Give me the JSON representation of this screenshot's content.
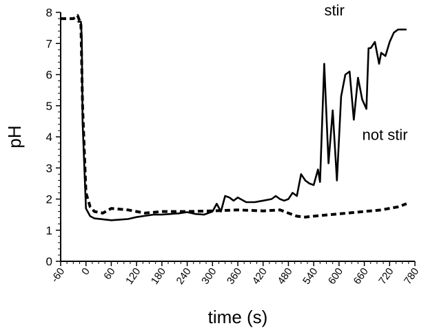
{
  "chart_data": {
    "type": "line",
    "title": "",
    "xlabel": "time (s)",
    "ylabel": "pH",
    "xlim": [
      -60,
      780
    ],
    "ylim": [
      0,
      8
    ],
    "xticks": [
      -60,
      0,
      60,
      120,
      180,
      240,
      300,
      360,
      420,
      480,
      540,
      600,
      660,
      720,
      780
    ],
    "yticks": [
      0,
      1,
      2,
      3,
      4,
      5,
      6,
      7,
      8
    ],
    "grid": false,
    "legend": "none",
    "annotations": [
      {
        "text": "stir",
        "x": 565,
        "y": 7.9
      },
      {
        "text": "not stir",
        "x": 655,
        "y": 3.9
      }
    ],
    "series": [
      {
        "name": "stir",
        "style": "solid",
        "color": "#000000",
        "x": [
          -20,
          -12,
          -10,
          -8,
          0,
          10,
          20,
          40,
          60,
          80,
          100,
          120,
          140,
          160,
          180,
          200,
          220,
          240,
          260,
          280,
          290,
          300,
          310,
          320,
          330,
          340,
          350,
          360,
          380,
          400,
          420,
          440,
          450,
          460,
          470,
          480,
          490,
          500,
          510,
          520,
          530,
          540,
          550,
          555,
          565,
          575,
          585,
          595,
          605,
          615,
          625,
          635,
          645,
          655,
          665,
          670,
          675,
          685,
          695,
          700,
          710,
          720,
          730,
          740,
          750,
          760
        ],
        "y": [
          7.7,
          7.7,
          7.2,
          4.5,
          1.7,
          1.45,
          1.38,
          1.35,
          1.32,
          1.34,
          1.36,
          1.42,
          1.46,
          1.5,
          1.5,
          1.52,
          1.54,
          1.58,
          1.52,
          1.5,
          1.55,
          1.6,
          1.85,
          1.6,
          2.1,
          2.05,
          1.95,
          2.05,
          1.9,
          1.9,
          1.95,
          2.0,
          2.1,
          2.0,
          1.95,
          2.0,
          2.2,
          2.1,
          2.8,
          2.6,
          2.5,
          2.45,
          2.95,
          2.55,
          6.35,
          3.15,
          4.85,
          2.6,
          5.3,
          6.0,
          6.1,
          4.55,
          5.9,
          5.2,
          4.9,
          6.85,
          6.85,
          7.05,
          6.35,
          6.7,
          6.6,
          7.05,
          7.35,
          7.45,
          7.45,
          7.45
        ]
      },
      {
        "name": "not stir",
        "style": "dashed",
        "color": "#000000",
        "x": [
          -60,
          -30,
          -20,
          -14,
          -12,
          -8,
          0,
          10,
          20,
          40,
          60,
          100,
          140,
          180,
          240,
          300,
          360,
          420,
          460,
          480,
          500,
          520,
          540,
          580,
          620,
          660,
          700,
          740,
          760
        ],
        "y": [
          7.8,
          7.8,
          7.9,
          7.7,
          7.6,
          5.0,
          2.2,
          1.75,
          1.6,
          1.55,
          1.7,
          1.65,
          1.55,
          1.6,
          1.6,
          1.62,
          1.65,
          1.62,
          1.65,
          1.55,
          1.45,
          1.42,
          1.45,
          1.5,
          1.55,
          1.6,
          1.65,
          1.75,
          1.85
        ]
      }
    ]
  }
}
